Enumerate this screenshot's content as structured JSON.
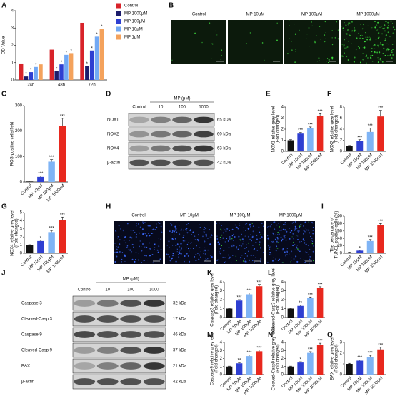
{
  "figure": {
    "letters": [
      "A",
      "B",
      "C",
      "D",
      "E",
      "F",
      "G",
      "H",
      "I",
      "J",
      "K",
      "L",
      "M",
      "N",
      "O"
    ],
    "images": [
      {
        "labels": [
          "Control",
          "MP 10μM",
          "MP 100μM",
          "MP 1000μM"
        ]
      },
      {
        "labels": [
          "Control",
          "MP 10μM",
          "MP 100μM",
          "MP 1000μM"
        ]
      }
    ],
    "blots": [
      {
        "header": "MP (μM)",
        "lanes": [
          "Control",
          "10",
          "100",
          "1000"
        ],
        "rows": [
          {
            "protein": "NOX1",
            "kda": "65 kDa"
          },
          {
            "protein": "NOX2",
            "kda": "60 kDa"
          },
          {
            "protein": "NOX4",
            "kda": "63 kDa"
          },
          {
            "protein": "β-actin",
            "kda": "42 kDa"
          }
        ]
      },
      {
        "header": "MP (μM)",
        "lanes": [
          "Control",
          "10",
          "100",
          "1000"
        ],
        "rows": [
          {
            "protein": "Caspase 3",
            "kda": "32 kDa"
          },
          {
            "protein": "Cleaved-Casp 3",
            "kda": "17 kDa"
          },
          {
            "protein": "Caspase 9",
            "kda": "46 kDa"
          },
          {
            "protein": "Cleaved-Casp 9",
            "kda": "37 kDa"
          },
          {
            "protein": "BAX",
            "kda": "21 kDa"
          },
          {
            "protein": "β-actin",
            "kda": "42 kDa"
          }
        ]
      }
    ]
  },
  "chart_data": [
    {
      "type": "bar",
      "ylabel": [
        "OD Value"
      ],
      "categories": [
        "24h",
        "48h",
        "72h"
      ],
      "ylim": [
        0,
        4
      ],
      "yticks": [
        0,
        1,
        2,
        3,
        4
      ],
      "series": [
        {
          "name": "Control",
          "color": "#d8232a",
          "values": [
            0.95,
            1.75,
            3.3
          ],
          "significance": [
            null,
            null,
            null
          ]
        },
        {
          "name": "MP 1000μM",
          "color": "#1c1c6b",
          "values": [
            0.2,
            0.5,
            0.8
          ],
          "significance": [
            "*",
            "*",
            "*"
          ]
        },
        {
          "name": "MP 100μM",
          "color": "#2e3fd1",
          "values": [
            0.45,
            0.9,
            1.7
          ],
          "significance": [
            "*",
            "*",
            "*"
          ]
        },
        {
          "name": "MP 10μM",
          "color": "#72a9f4",
          "values": [
            0.75,
            1.45,
            2.5
          ],
          "significance": [
            "*",
            "*",
            "*"
          ]
        },
        {
          "name": "MP 1μM",
          "color": "#f4a25c",
          "values": [
            0.9,
            1.55,
            2.95
          ],
          "significance": [
            null,
            "*",
            "*"
          ]
        }
      ]
    },
    {
      "type": "bar",
      "ylabel": [
        "ROS-positive cells/field"
      ],
      "categories": [
        "Control",
        "MP 10μM",
        "MP 100μM",
        "MP 1000μM"
      ],
      "colors": [
        "#111111",
        "#2e3fd1",
        "#7fb4f5",
        "#e8281e"
      ],
      "values": [
        2,
        20,
        80,
        220
      ],
      "errors": [
        2,
        4,
        8,
        30
      ],
      "significance": [
        null,
        "***",
        "***",
        "***"
      ],
      "ylim": [
        0,
        300
      ],
      "yticks": [
        0,
        100,
        200,
        300
      ]
    },
    {
      "type": "bar",
      "ylabel": [
        "NOX1 relative grey level",
        "(Fold changed)"
      ],
      "categories": [
        "Control",
        "MP 10μM",
        "MP 100μM",
        "MP 1000μM"
      ],
      "colors": [
        "#111111",
        "#2e3fd1",
        "#7fb4f5",
        "#e8281e"
      ],
      "values": [
        1,
        1.6,
        2.1,
        3.2
      ],
      "errors": [
        0.05,
        0.1,
        0.1,
        0.2
      ],
      "significance": [
        null,
        "***",
        "***",
        "***"
      ],
      "ylim": [
        0,
        4
      ],
      "yticks": [
        0,
        1,
        2,
        3,
        4
      ]
    },
    {
      "type": "bar",
      "ylabel": [
        "NOX2 relative grey level",
        "(Fold changed)"
      ],
      "categories": [
        "Control",
        "MP 10μM",
        "MP 100μM",
        "MP 1000μM"
      ],
      "colors": [
        "#111111",
        "#2e3fd1",
        "#7fb4f5",
        "#e8281e"
      ],
      "values": [
        1,
        1.9,
        3.5,
        6.3
      ],
      "errors": [
        0.05,
        0.2,
        0.7,
        1.1
      ],
      "significance": [
        null,
        "***",
        "***",
        "***"
      ],
      "ylim": [
        0,
        8
      ],
      "yticks": [
        0,
        2,
        4,
        6,
        8
      ]
    },
    {
      "type": "bar",
      "ylabel": [
        "NOX4 relative grey level",
        "(Fold changed)"
      ],
      "categories": [
        "Control",
        "MP 10μM",
        "MP 100μM",
        "MP 1000μM"
      ],
      "colors": [
        "#111111",
        "#2e3fd1",
        "#7fb4f5",
        "#e8281e"
      ],
      "values": [
        1,
        1.5,
        2.6,
        4.1
      ],
      "errors": [
        0.05,
        0.1,
        0.2,
        0.35
      ],
      "significance": [
        null,
        "*",
        "***",
        "***"
      ],
      "ylim": [
        0,
        5
      ],
      "yticks": [
        0,
        1,
        2,
        3,
        4,
        5
      ]
    },
    {
      "type": "bar",
      "ylabel": [
        "The percentage of",
        "TUNEL-positive cells (%)"
      ],
      "categories": [
        "Control",
        "MP 10μM",
        "MP 100μM",
        "MP 1000μM"
      ],
      "colors": [
        "#111111",
        "#2e3fd1",
        "#7fb4f5",
        "#e8281e"
      ],
      "values": [
        2,
        7,
        33,
        76
      ],
      "errors": [
        1,
        1,
        4,
        4
      ],
      "significance": [
        null,
        "*",
        "***",
        "***"
      ],
      "ylim": [
        0,
        100
      ],
      "yticks": [
        0,
        20,
        40,
        60,
        80,
        100
      ]
    },
    {
      "type": "bar",
      "ylabel": [
        "Caspase3 relative grey level",
        "(Fold changed)"
      ],
      "categories": [
        "Control",
        "MP 10μM",
        "MP 100μM",
        "MP 1000μM"
      ],
      "colors": [
        "#111111",
        "#2e3fd1",
        "#7fb4f5",
        "#e8281e"
      ],
      "values": [
        1,
        1.9,
        2.6,
        3.5
      ],
      "errors": [
        0.05,
        0.1,
        0.15,
        0.2
      ],
      "significance": [
        null,
        "***",
        "***",
        "***"
      ],
      "ylim": [
        0,
        4
      ],
      "yticks": [
        0,
        1,
        2,
        3,
        4
      ]
    },
    {
      "type": "bar",
      "ylabel": [
        "Cleaved-Casp3 relative grey level",
        "(Fold changed)"
      ],
      "categories": [
        "Control",
        "MP 10μM",
        "MP 100μM",
        "MP 1000μM"
      ],
      "colors": [
        "#111111",
        "#2e3fd1",
        "#7fb4f5",
        "#e8281e"
      ],
      "values": [
        1,
        1.3,
        2.2,
        3.3
      ],
      "errors": [
        0.05,
        0.1,
        0.1,
        0.15
      ],
      "significance": [
        null,
        "**",
        "***",
        "***"
      ],
      "ylim": [
        0,
        4
      ],
      "yticks": [
        0,
        1,
        2,
        3,
        4
      ]
    },
    {
      "type": "bar",
      "ylabel": [
        "Caspase9 relative grey level",
        "(Fold changed)"
      ],
      "categories": [
        "Control",
        "MP 10μM",
        "MP 100μM",
        "MP 1000μM"
      ],
      "colors": [
        "#111111",
        "#2e3fd1",
        "#7fb4f5",
        "#e8281e"
      ],
      "values": [
        1,
        1.4,
        2.3,
        2.9
      ],
      "errors": [
        0.05,
        0.1,
        0.15,
        0.15
      ],
      "significance": [
        null,
        "**",
        "***",
        "***"
      ],
      "ylim": [
        0,
        4
      ],
      "yticks": [
        0,
        1,
        2,
        3,
        4
      ]
    },
    {
      "type": "bar",
      "ylabel": [
        "Cleaved-Casp9 relative grey level",
        "(Fold changed)"
      ],
      "categories": [
        "Control",
        "MP 10μM",
        "MP 100μM",
        "MP 1000μM"
      ],
      "colors": [
        "#111111",
        "#2e3fd1",
        "#7fb4f5",
        "#e8281e"
      ],
      "values": [
        1,
        1.5,
        2.7,
        3.7
      ],
      "errors": [
        0.05,
        0.1,
        0.15,
        0.2
      ],
      "significance": [
        null,
        "*",
        "***",
        "***"
      ],
      "ylim": [
        0,
        4
      ],
      "yticks": [
        0,
        1,
        2,
        3,
        4
      ]
    },
    {
      "type": "bar",
      "ylabel": [
        "BAX relative grey level",
        "(Fold changed)"
      ],
      "categories": [
        "Control",
        "MP 10μM",
        "MP 100μM",
        "MP 1000μM"
      ],
      "colors": [
        "#111111",
        "#2e3fd1",
        "#7fb4f5",
        "#e8281e"
      ],
      "values": [
        1,
        1.3,
        1.6,
        2.35
      ],
      "errors": [
        0.05,
        0.08,
        0.2,
        0.2
      ],
      "significance": [
        null,
        "***",
        "***",
        "***"
      ],
      "ylim": [
        0,
        3
      ],
      "yticks": [
        0,
        1,
        2,
        3
      ]
    }
  ]
}
